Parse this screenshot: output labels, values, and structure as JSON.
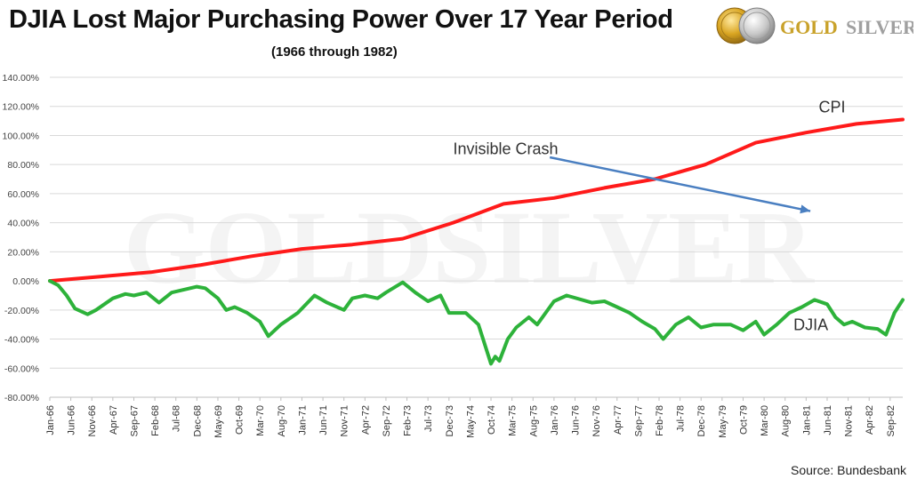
{
  "title": "DJIA Lost Major Purchasing Power Over 17 Year Period",
  "subtitle": "(1966 through 1982)",
  "source": "Source: Bundesbank",
  "brand": {
    "logo_text_gold": "GOLD",
    "logo_text_silver": "SILVER",
    "watermark": "GOLDSILVER"
  },
  "colors": {
    "cpi": "#ff1a1a",
    "djia": "#2db23a",
    "arrow": "#4a7fc1",
    "grid": "#d9d9d9"
  },
  "chart_data": {
    "type": "line",
    "xlabel": "",
    "ylabel": "",
    "ylim": [
      -80,
      140
    ],
    "yticks": [
      -80,
      -60,
      -40,
      -20,
      0,
      20,
      40,
      60,
      80,
      100,
      120,
      140
    ],
    "ytick_labels": [
      "-80.00%",
      "-60.00%",
      "-40.00%",
      "-20.00%",
      "0.00%",
      "20.00%",
      "40.00%",
      "60.00%",
      "80.00%",
      "100.00%",
      "120.00%",
      "140.00%"
    ],
    "xlim": [
      "Jan-66",
      "Dec-82"
    ],
    "xtick_labels": [
      "Jan-66",
      "Jun-66",
      "Nov-66",
      "Apr-67",
      "Sep-67",
      "Feb-68",
      "Jul-68",
      "Dec-68",
      "May-69",
      "Oct-69",
      "Mar-70",
      "Aug-70",
      "Jan-71",
      "Jun-71",
      "Nov-71",
      "Apr-72",
      "Sep-72",
      "Feb-73",
      "Jul-73",
      "Dec-73",
      "May-74",
      "Oct-74",
      "Mar-75",
      "Aug-75",
      "Jan-76",
      "Jun-76",
      "Nov-76",
      "Apr-77",
      "Sep-77",
      "Feb-78",
      "Jul-78",
      "Dec-78",
      "May-79",
      "Oct-79",
      "Mar-80",
      "Aug-80",
      "Jan-81",
      "Jun-81",
      "Nov-81",
      "Apr-82",
      "Sep-82"
    ],
    "grid": true,
    "legend": "none",
    "series": [
      {
        "name": "CPI",
        "points": [
          [
            "Jan-66",
            0
          ],
          [
            "Jan-67",
            3
          ],
          [
            "Jan-68",
            6
          ],
          [
            "Jan-69",
            11
          ],
          [
            "Jan-70",
            17
          ],
          [
            "Jan-71",
            22
          ],
          [
            "Jan-72",
            25
          ],
          [
            "Jan-73",
            29
          ],
          [
            "Jan-74",
            40
          ],
          [
            "Jan-75",
            53
          ],
          [
            "Jan-76",
            57
          ],
          [
            "Jan-77",
            64
          ],
          [
            "Jan-78",
            70
          ],
          [
            "Jan-79",
            80
          ],
          [
            "Jan-80",
            95
          ],
          [
            "Jan-81",
            102
          ],
          [
            "Jan-82",
            108
          ],
          [
            "Dec-82",
            111
          ]
        ]
      },
      {
        "name": "DJIA",
        "points": [
          [
            "Jan-66",
            0
          ],
          [
            "Mar-66",
            -3
          ],
          [
            "May-66",
            -10
          ],
          [
            "Jul-66",
            -19
          ],
          [
            "Oct-66",
            -23
          ],
          [
            "Dec-66",
            -20
          ],
          [
            "Apr-67",
            -12
          ],
          [
            "Jul-67",
            -9
          ],
          [
            "Sep-67",
            -10
          ],
          [
            "Dec-67",
            -8
          ],
          [
            "Mar-68",
            -15
          ],
          [
            "Jun-68",
            -8
          ],
          [
            "Dec-68",
            -4
          ],
          [
            "Feb-69",
            -5
          ],
          [
            "May-69",
            -12
          ],
          [
            "Jul-69",
            -20
          ],
          [
            "Sep-69",
            -18
          ],
          [
            "Dec-69",
            -22
          ],
          [
            "Mar-70",
            -28
          ],
          [
            "May-70",
            -38
          ],
          [
            "Aug-70",
            -30
          ],
          [
            "Dec-70",
            -22
          ],
          [
            "Apr-71",
            -10
          ],
          [
            "Jul-71",
            -15
          ],
          [
            "Nov-71",
            -20
          ],
          [
            "Jan-72",
            -12
          ],
          [
            "Apr-72",
            -10
          ],
          [
            "Jul-72",
            -12
          ],
          [
            "Sep-72",
            -8
          ],
          [
            "Jan-73",
            -1
          ],
          [
            "Apr-73",
            -8
          ],
          [
            "Jul-73",
            -14
          ],
          [
            "Oct-73",
            -10
          ],
          [
            "Dec-73",
            -22
          ],
          [
            "Apr-74",
            -22
          ],
          [
            "Jul-74",
            -30
          ],
          [
            "Sep-74",
            -48
          ],
          [
            "Oct-74",
            -57
          ],
          [
            "Nov-74",
            -52
          ],
          [
            "Dec-74",
            -55
          ],
          [
            "Feb-75",
            -40
          ],
          [
            "Apr-75",
            -32
          ],
          [
            "Jul-75",
            -25
          ],
          [
            "Sep-75",
            -30
          ],
          [
            "Jan-76",
            -14
          ],
          [
            "Apr-76",
            -10
          ],
          [
            "Oct-76",
            -15
          ],
          [
            "Jan-77",
            -14
          ],
          [
            "Apr-77",
            -18
          ],
          [
            "Jul-77",
            -22
          ],
          [
            "Oct-77",
            -28
          ],
          [
            "Jan-78",
            -33
          ],
          [
            "Mar-78",
            -40
          ],
          [
            "Jun-78",
            -30
          ],
          [
            "Sep-78",
            -25
          ],
          [
            "Dec-78",
            -32
          ],
          [
            "Mar-79",
            -30
          ],
          [
            "Jul-79",
            -30
          ],
          [
            "Oct-79",
            -34
          ],
          [
            "Jan-80",
            -28
          ],
          [
            "Mar-80",
            -37
          ],
          [
            "Jun-80",
            -30
          ],
          [
            "Sep-80",
            -22
          ],
          [
            "Dec-80",
            -18
          ],
          [
            "Mar-81",
            -13
          ],
          [
            "Jun-81",
            -16
          ],
          [
            "Aug-81",
            -25
          ],
          [
            "Oct-81",
            -30
          ],
          [
            "Dec-81",
            -28
          ],
          [
            "Mar-82",
            -32
          ],
          [
            "Jun-82",
            -33
          ],
          [
            "Aug-82",
            -37
          ],
          [
            "Oct-82",
            -22
          ],
          [
            "Dec-82",
            -13
          ]
        ]
      }
    ],
    "annotations": [
      {
        "text": "CPI",
        "x": "Apr-81",
        "y": 116
      },
      {
        "text": "DJIA",
        "x": "Oct-80",
        "y": -34
      },
      {
        "text": "Invisible Crash",
        "x": "Jan-74",
        "y": 87
      }
    ],
    "arrow": {
      "from": [
        "Dec-75",
        85
      ],
      "to": [
        "Feb-81",
        48
      ]
    }
  }
}
